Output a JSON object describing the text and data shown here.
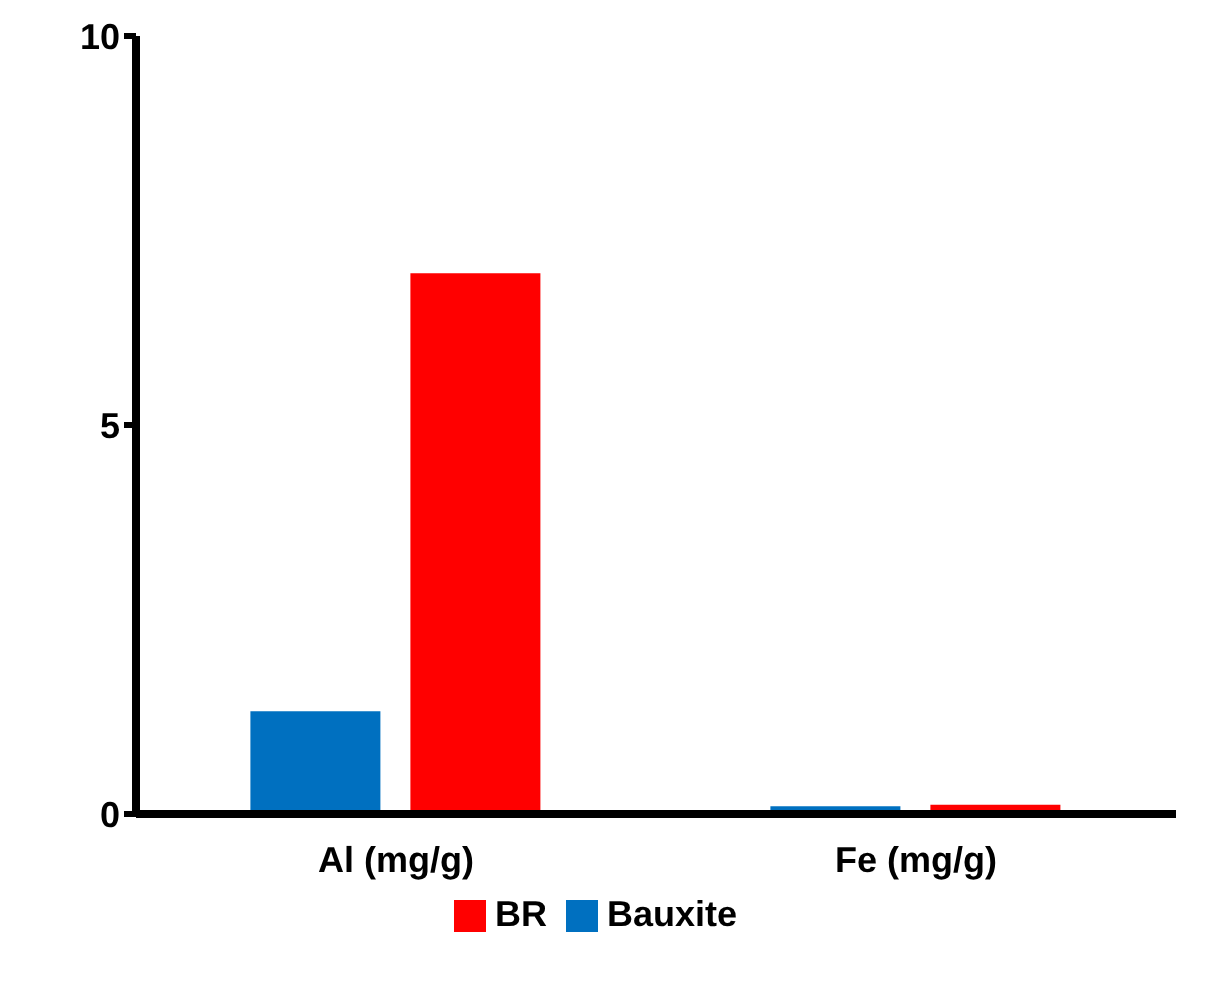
{
  "chart_data": {
    "type": "bar",
    "categories": [
      "Al (mg/g)",
      "Fe (mg/g)"
    ],
    "series": [
      {
        "name": "Bauxite",
        "color": "#0070c0",
        "values": [
          1.32,
          0.1
        ]
      },
      {
        "name": "BR",
        "color": "#ff0000",
        "values": [
          6.95,
          0.12
        ]
      }
    ],
    "ylim": [
      0,
      10
    ],
    "yticks": [
      0,
      5,
      10
    ],
    "grid": false,
    "legend": "bottom"
  }
}
